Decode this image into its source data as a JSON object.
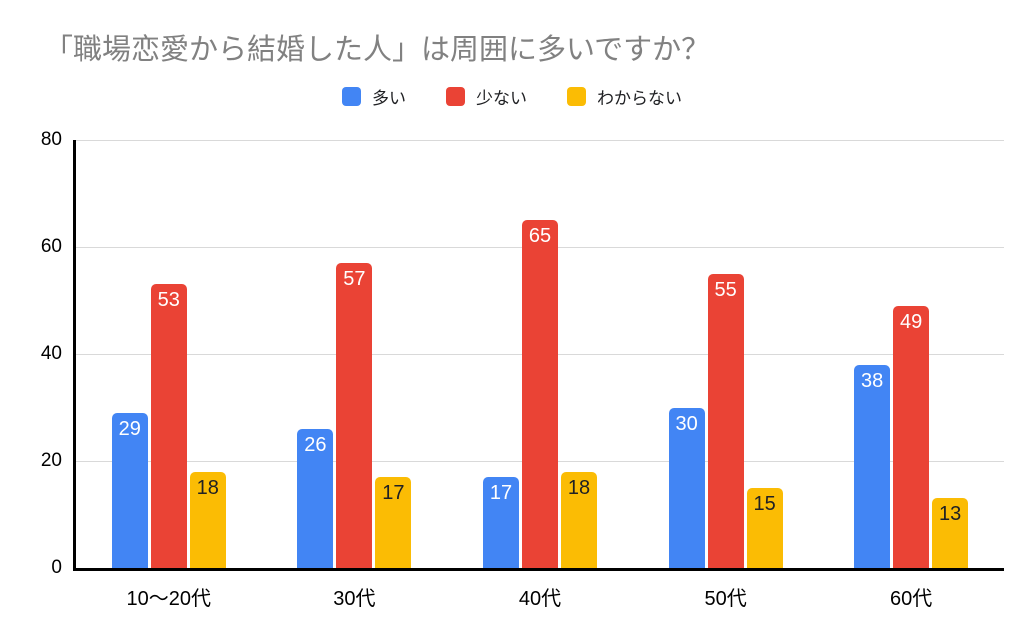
{
  "chart_data": {
    "type": "bar",
    "title": "「職場恋愛から結婚した人」は周囲に多いですか？",
    "title_color": "#818181",
    "xlabel": "",
    "ylabel": "",
    "categories": [
      "10〜20代",
      "30代",
      "40代",
      "50代",
      "60代"
    ],
    "series": [
      {
        "name": "多い",
        "color": "#4285f4",
        "label_color": "#ffffff",
        "values": [
          29,
          26,
          17,
          30,
          38
        ]
      },
      {
        "name": "少ない",
        "color": "#ea4335",
        "label_color": "#ffffff",
        "values": [
          53,
          57,
          65,
          55,
          49
        ]
      },
      {
        "name": "わからない",
        "color": "#fbbc04",
        "label_color": "#202124",
        "values": [
          18,
          17,
          18,
          15,
          13
        ]
      }
    ],
    "ylim": [
      0,
      80
    ],
    "yticks": [
      0,
      20,
      40,
      60,
      80
    ],
    "grid": true,
    "gridline_color": "#d9d9d9",
    "axis_color": "#000000",
    "legend_position": "top"
  }
}
